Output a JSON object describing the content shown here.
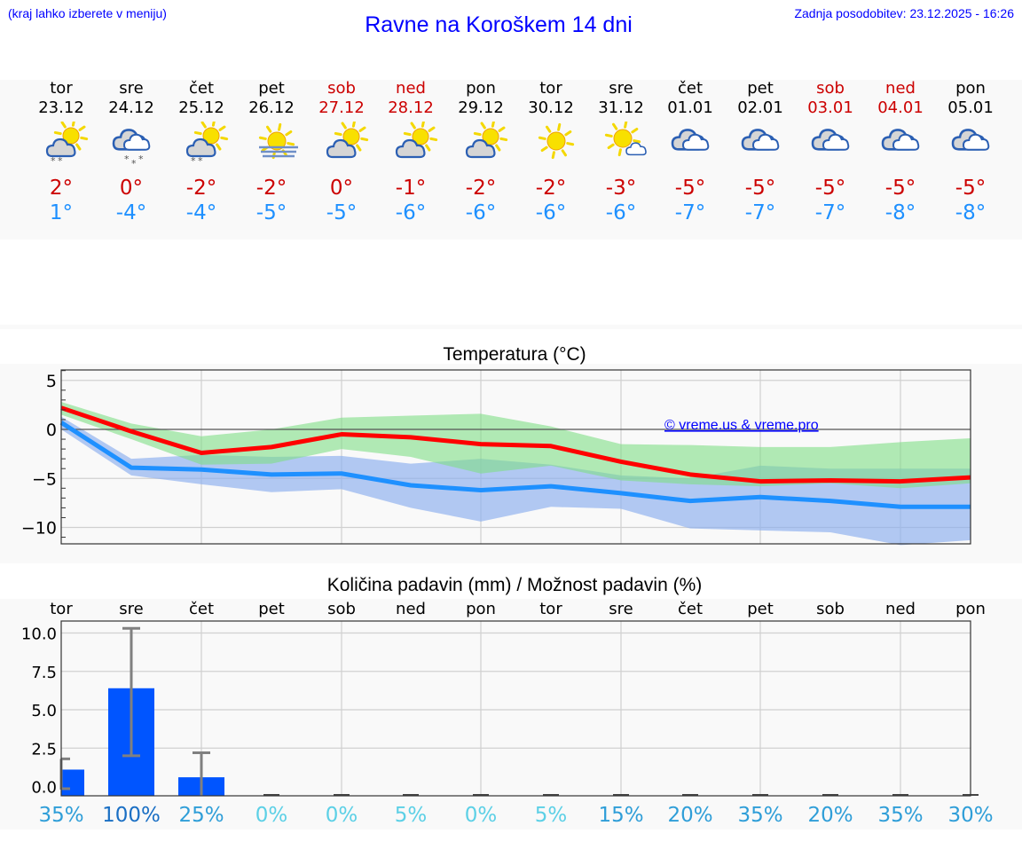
{
  "header": {
    "hint": "(kraj lahko izberete v meniju)",
    "title": "Ravne na Koroškem 14 dni",
    "updated": "Zadnja posodobitev: 23.12.2025 - 16:26"
  },
  "colors": {
    "link": "#0000ff",
    "weekend": "#cc0000",
    "tmax": "#cc0000",
    "tmin": "#1e90ff",
    "max_line": "#ff0000",
    "min_line": "#1e90ff",
    "max_band": "#abe9ae",
    "min_band": "#adc8f2",
    "overlap_band": "#7dc8a7",
    "bar": "#0055ff",
    "errorbar": "#808080"
  },
  "days": [
    {
      "name": "tor",
      "date": "23.12",
      "weekend": false,
      "icon": "partly-cloudy-light-snow-icon",
      "tmax": "2°",
      "tmin": "1°"
    },
    {
      "name": "sre",
      "date": "24.12",
      "weekend": false,
      "icon": "cloudy-snow-icon",
      "tmax": "0°",
      "tmin": "-4°"
    },
    {
      "name": "čet",
      "date": "25.12",
      "weekend": false,
      "icon": "partly-cloudy-light-snow-icon",
      "tmax": "-2°",
      "tmin": "-4°"
    },
    {
      "name": "pet",
      "date": "26.12",
      "weekend": false,
      "icon": "sun-fog-icon",
      "tmax": "-2°",
      "tmin": "-5°"
    },
    {
      "name": "sob",
      "date": "27.12",
      "weekend": true,
      "icon": "partly-cloudy-icon",
      "tmax": "0°",
      "tmin": "-5°"
    },
    {
      "name": "ned",
      "date": "28.12",
      "weekend": true,
      "icon": "partly-cloudy-icon",
      "tmax": "-1°",
      "tmin": "-6°"
    },
    {
      "name": "pon",
      "date": "29.12",
      "weekend": false,
      "icon": "partly-cloudy-icon",
      "tmax": "-2°",
      "tmin": "-6°"
    },
    {
      "name": "tor",
      "date": "30.12",
      "weekend": false,
      "icon": "sunny-icon",
      "tmax": "-2°",
      "tmin": "-6°"
    },
    {
      "name": "sre",
      "date": "31.12",
      "weekend": false,
      "icon": "mostly-sunny-icon",
      "tmax": "-3°",
      "tmin": "-6°"
    },
    {
      "name": "čet",
      "date": "01.01",
      "weekend": false,
      "icon": "overcast-icon",
      "tmax": "-5°",
      "tmin": "-7°"
    },
    {
      "name": "pet",
      "date": "02.01",
      "weekend": false,
      "icon": "overcast-icon",
      "tmax": "-5°",
      "tmin": "-7°"
    },
    {
      "name": "sob",
      "date": "03.01",
      "weekend": true,
      "icon": "overcast-icon",
      "tmax": "-5°",
      "tmin": "-7°"
    },
    {
      "name": "ned",
      "date": "04.01",
      "weekend": true,
      "icon": "overcast-icon",
      "tmax": "-5°",
      "tmin": "-8°"
    },
    {
      "name": "pon",
      "date": "05.01",
      "weekend": false,
      "icon": "overcast-icon",
      "tmax": "-5°",
      "tmin": "-8°"
    }
  ],
  "temp_chart": {
    "title": "Temperatura (°C)",
    "watermark": "© vreme.us & vreme.pro",
    "y_ticks": [
      "5",
      "0",
      "−10"
    ],
    "y_tick_minus5": "−5"
  },
  "precip_chart": {
    "title": "Količina padavin (mm) / Možnost padavin (%)",
    "day_labels": [
      "tor",
      "sre",
      "čet",
      "pet",
      "sob",
      "ned",
      "pon",
      "tor",
      "sre",
      "čet",
      "pet",
      "sob",
      "ned",
      "pon"
    ],
    "y_ticks": [
      "10.0",
      "7.5",
      "5.0",
      "2.5",
      "0.0"
    ],
    "probabilities": [
      "35%",
      "100%",
      "25%",
      "0%",
      "0%",
      "5%",
      "0%",
      "5%",
      "15%",
      "20%",
      "35%",
      "20%",
      "35%",
      "30%"
    ]
  },
  "chart_data": [
    {
      "type": "line",
      "title": "Temperatura (°C)",
      "xlabel": "",
      "ylabel": "°C",
      "ylim": [
        -12,
        6
      ],
      "y_ticks": [
        5,
        0,
        -5,
        -10
      ],
      "grid": true,
      "x": [
        "23.12",
        "24.12",
        "25.12",
        "26.12",
        "27.12",
        "28.12",
        "29.12",
        "30.12",
        "31.12",
        "01.01",
        "02.01",
        "03.01",
        "04.01",
        "05.01"
      ],
      "series": [
        {
          "name": "Max temperature",
          "color": "#ff0000",
          "values": [
            2.2,
            -0.2,
            -2.4,
            -1.8,
            -0.5,
            -0.8,
            -1.5,
            -1.7,
            -3.3,
            -4.6,
            -5.3,
            -5.2,
            -5.3,
            -4.9
          ],
          "band_low": [
            1.5,
            -1.0,
            -3.6,
            -3.5,
            -2.0,
            -2.8,
            -4.5,
            -3.7,
            -5.2,
            -5.6,
            -5.8,
            -5.5,
            -6.0,
            -5.5
          ],
          "band_high": [
            2.8,
            0.6,
            -0.7,
            0.0,
            1.2,
            1.4,
            1.6,
            0.3,
            -1.5,
            -1.6,
            -1.8,
            -1.8,
            -1.3,
            -0.9
          ]
        },
        {
          "name": "Min temperature",
          "color": "#1e90ff",
          "values": [
            0.7,
            -3.9,
            -4.1,
            -4.6,
            -4.5,
            -5.7,
            -6.2,
            -5.8,
            -6.5,
            -7.3,
            -6.9,
            -7.3,
            -7.9,
            -7.9
          ],
          "band_low": [
            0.0,
            -4.7,
            -5.6,
            -6.4,
            -6.1,
            -8.0,
            -9.4,
            -7.9,
            -8.1,
            -10.1,
            -10.3,
            -10.5,
            -11.8,
            -11.3
          ],
          "band_high": [
            1.3,
            -3.0,
            -2.6,
            -2.8,
            -2.7,
            -3.5,
            -3.0,
            -3.6,
            -4.7,
            -5.0,
            -3.7,
            -4.0,
            -4.0,
            -4.0
          ]
        }
      ]
    },
    {
      "type": "bar",
      "title": "Količina padavin (mm) / Možnost padavin (%)",
      "xlabel": "",
      "ylabel": "mm",
      "ylim": [
        -0.6,
        11.3
      ],
      "y_ticks": [
        0.0,
        2.5,
        5.0,
        7.5,
        10.0
      ],
      "grid": true,
      "categories": [
        "tor",
        "sre",
        "čet",
        "pet",
        "sob",
        "ned",
        "pon",
        "tor",
        "sre",
        "čet",
        "pet",
        "sob",
        "ned",
        "pon"
      ],
      "series": [
        {
          "name": "Količina padavin (mm)",
          "values": [
            1.1,
            6.4,
            0.6,
            0,
            0,
            0,
            0,
            0,
            0,
            0,
            0,
            0,
            0,
            0
          ],
          "error_low": [
            -0.2,
            2.0,
            -0.6,
            0,
            0,
            0,
            0,
            0,
            0,
            0,
            0,
            0,
            0,
            0
          ],
          "error_high": [
            1.8,
            10.3,
            2.2,
            0,
            0,
            0,
            0,
            0,
            0,
            0,
            0,
            0,
            0,
            0
          ]
        },
        {
          "name": "Možnost padavin (%)",
          "values": [
            35,
            100,
            25,
            0,
            0,
            5,
            0,
            5,
            15,
            20,
            35,
            20,
            35,
            30
          ]
        }
      ]
    }
  ]
}
